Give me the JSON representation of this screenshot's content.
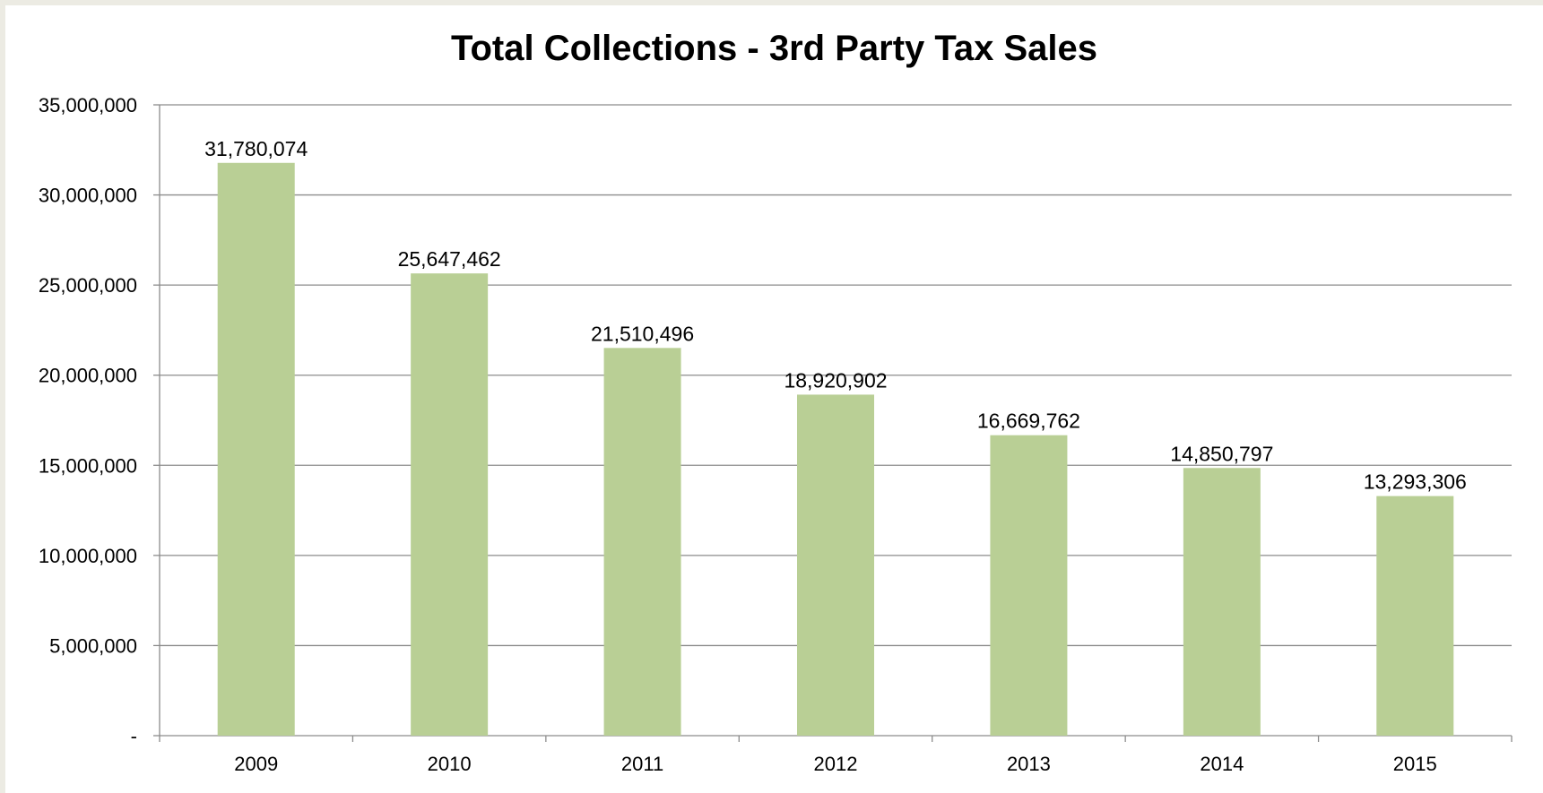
{
  "chart_data": {
    "type": "bar",
    "title": "Total Collections  - 3rd Party Tax Sales",
    "xlabel": "",
    "ylabel": "",
    "categories": [
      "2009",
      "2010",
      "2011",
      "2012",
      "2013",
      "2014",
      "2015"
    ],
    "values": [
      31780074,
      25647462,
      21510496,
      18920902,
      16669762,
      14850797,
      13293306
    ],
    "data_labels": [
      "31,780,074",
      "25,647,462",
      "21,510,496",
      "18,920,902",
      "16,669,762",
      "14,850,797",
      "13,293,306"
    ],
    "ylim": [
      0,
      35000000
    ],
    "y_ticks": [
      0,
      5000000,
      10000000,
      15000000,
      20000000,
      25000000,
      30000000,
      35000000
    ],
    "y_tick_labels": [
      "-",
      "5,000,000",
      "10,000,000",
      "15,000,000",
      "20,000,000",
      "25,000,000",
      "30,000,000",
      "35,000,000"
    ],
    "grid": true,
    "legend": "none",
    "colors": {
      "bar": "#b9cf95",
      "gridline": "#8c8c8c",
      "axis": "#8c8c8c",
      "background": "#ffffff",
      "page": "#ecebe3"
    }
  }
}
